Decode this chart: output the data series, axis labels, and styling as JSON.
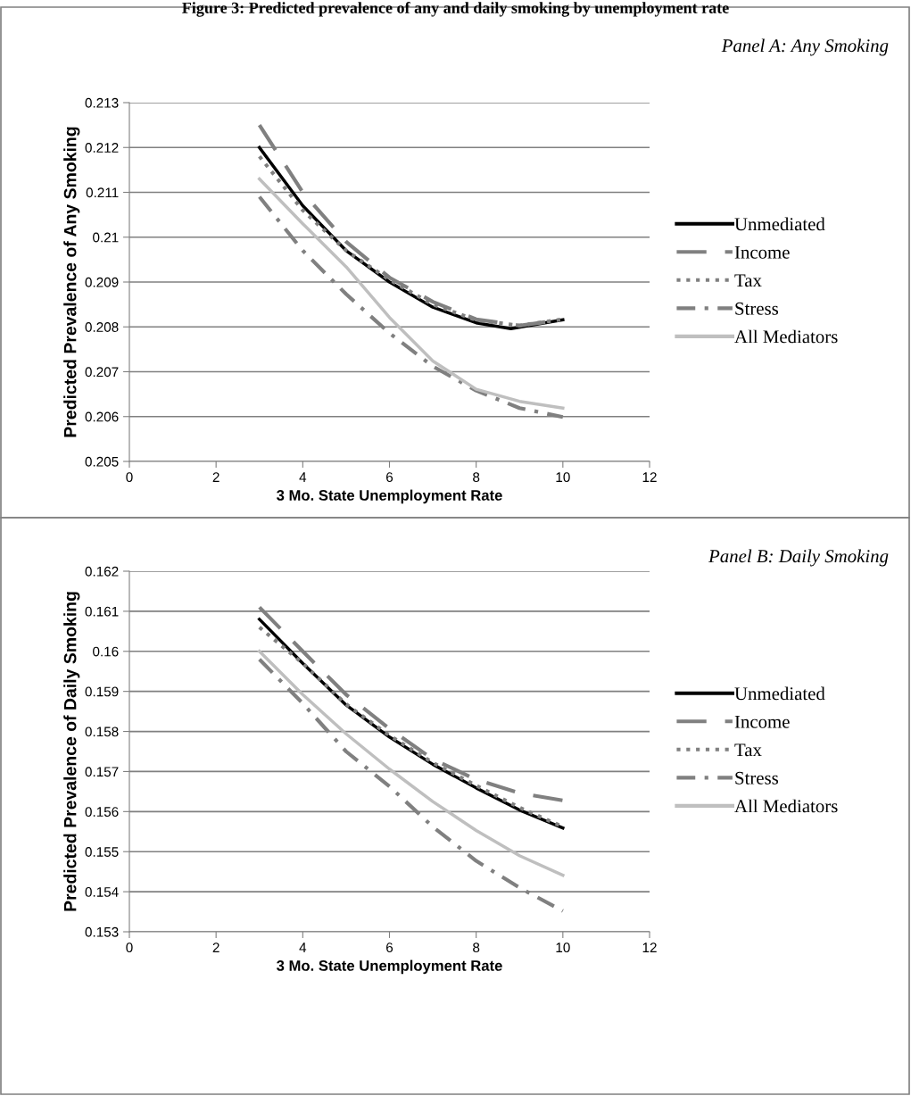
{
  "chart_data": [
    {
      "type": "line",
      "title": "Figure 3: Predicted prevalence of any and daily smoking by unemployment rate",
      "xlabel": "3 Mo. State Unemployment Rate",
      "ylabel": "Predicted Prevalence of Any Smoking",
      "annotations": [
        "Panel A: Any Smoking"
      ],
      "xlim": [
        0,
        12
      ],
      "xticks": [
        0,
        2,
        4,
        6,
        8,
        10,
        12
      ],
      "ylim": [
        0.205,
        0.213
      ],
      "yticks": [
        0.205,
        0.206,
        0.207,
        0.208,
        0.209,
        0.21,
        0.211,
        0.212,
        0.213
      ],
      "grid": "y",
      "legend": "right",
      "series": [
        {
          "name": "Unmediated",
          "color": "#000000",
          "line_style": "solid",
          "x": [
            3,
            4,
            5,
            6,
            7,
            8,
            8.8,
            10
          ],
          "values": [
            0.212,
            0.2107,
            0.2097,
            0.209,
            0.20844,
            0.20809,
            0.20796,
            0.20816
          ]
        },
        {
          "name": "Income",
          "color": "#808080",
          "line_style": "dashed",
          "x": [
            3,
            4,
            5,
            6,
            7,
            8,
            9,
            10
          ],
          "values": [
            0.2125,
            0.211,
            0.2099,
            0.2091,
            0.20856,
            0.20817,
            0.20803,
            0.20816
          ]
        },
        {
          "name": "Tax",
          "color": "#808080",
          "line_style": "dotted",
          "x": [
            3,
            4,
            5,
            6,
            7,
            8,
            9,
            10
          ],
          "values": [
            0.2118,
            0.2106,
            0.2097,
            0.20905,
            0.2085,
            0.20815,
            0.20803,
            0.20817
          ]
        },
        {
          "name": "Stress",
          "color": "#808080",
          "line_style": "dashdot",
          "x": [
            3,
            4,
            5,
            6,
            7,
            8,
            9,
            10
          ],
          "values": [
            0.2109,
            0.2097,
            0.20873,
            0.20786,
            0.20712,
            0.20658,
            0.20619,
            0.20599
          ]
        },
        {
          "name": "All Mediators",
          "color": "#bfbfbf",
          "line_style": "solid",
          "x": [
            3,
            4,
            5,
            6,
            7,
            8,
            9,
            10
          ],
          "values": [
            0.2113,
            0.2103,
            0.20934,
            0.20821,
            0.20724,
            0.20661,
            0.20634,
            0.20619
          ]
        }
      ]
    },
    {
      "type": "line",
      "xlabel": "3 Mo. State Unemployment Rate",
      "ylabel": "Predicted Prevalence of Daily Smoking",
      "annotations": [
        "Panel B: Daily Smoking"
      ],
      "xlim": [
        0,
        12
      ],
      "xticks": [
        0,
        2,
        4,
        6,
        8,
        10,
        12
      ],
      "ylim": [
        0.153,
        0.162
      ],
      "yticks": [
        0.153,
        0.154,
        0.155,
        0.156,
        0.157,
        0.158,
        0.159,
        0.16,
        0.161,
        0.162
      ],
      "grid": "y",
      "legend": "right",
      "series": [
        {
          "name": "Unmediated",
          "color": "#000000",
          "line_style": "solid",
          "x": [
            3,
            4,
            5,
            6,
            7,
            8,
            9,
            10
          ],
          "values": [
            0.1608,
            0.1597,
            0.15866,
            0.15786,
            0.15718,
            0.15659,
            0.15604,
            0.15559
          ]
        },
        {
          "name": "Income",
          "color": "#808080",
          "line_style": "dashed",
          "x": [
            3,
            4,
            5,
            6,
            7,
            8,
            9,
            10
          ],
          "values": [
            0.1611,
            0.16,
            0.15892,
            0.15807,
            0.15731,
            0.1568,
            0.15646,
            0.15628
          ]
        },
        {
          "name": "Tax",
          "color": "#808080",
          "line_style": "dotted",
          "x": [
            3,
            4,
            5,
            6,
            7,
            8,
            9,
            10
          ],
          "values": [
            0.1606,
            0.1597,
            0.15868,
            0.1579,
            0.15722,
            0.15665,
            0.1561,
            0.15562
          ]
        },
        {
          "name": "Stress",
          "color": "#808080",
          "line_style": "dashdot",
          "x": [
            3,
            4,
            5,
            6,
            7,
            8,
            9,
            10
          ],
          "values": [
            0.1598,
            0.1587,
            0.1575,
            0.15663,
            0.15562,
            0.15477,
            0.1541,
            0.15352
          ]
        },
        {
          "name": "All Mediators",
          "color": "#bfbfbf",
          "line_style": "solid",
          "x": [
            3,
            4,
            5,
            6,
            7,
            8,
            9,
            10
          ],
          "values": [
            0.16,
            0.15892,
            0.15794,
            0.15706,
            0.15625,
            0.15553,
            0.1549,
            0.15441
          ]
        }
      ]
    }
  ]
}
